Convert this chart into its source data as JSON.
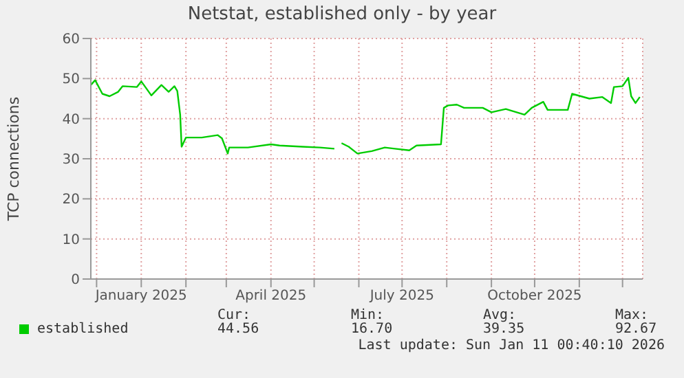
{
  "chart_data": {
    "type": "line",
    "title": "Netstat, established only - by year",
    "ylabel": "TCP connections",
    "x": [
      "2024-11-27",
      "2024-11-30",
      "2024-12-05",
      "2024-12-10",
      "2024-12-16",
      "2024-12-19",
      "2024-12-29",
      "2025-01-01",
      "2025-01-08",
      "2025-01-15",
      "2025-01-20",
      "2025-01-24",
      "2025-01-26",
      "2025-01-28",
      "2025-01-29",
      "2025-02-01",
      "2025-02-12",
      "2025-02-23",
      "2025-02-26",
      "2025-03-02",
      "2025-03-03",
      "2025-03-16",
      "2025-04-01",
      "2025-04-07",
      "2025-04-23",
      "2025-05-05",
      "2025-05-15",
      "2025-05-17",
      "2025-05-20",
      "2025-05-25",
      "2025-05-31",
      "2025-06-10",
      "2025-06-19",
      "2025-06-26",
      "2025-07-06",
      "2025-07-11",
      "2025-07-28",
      "2025-07-30",
      "2025-08-02",
      "2025-08-08",
      "2025-08-13",
      "2025-08-26",
      "2025-09-01",
      "2025-09-11",
      "2025-09-24",
      "2025-09-29",
      "2025-10-07",
      "2025-10-10",
      "2025-10-24",
      "2025-10-27",
      "2025-11-08",
      "2025-11-17",
      "2025-11-23",
      "2025-11-25",
      "2025-12-01",
      "2025-12-05",
      "2025-12-07",
      "2025-12-10",
      "2025-12-13"
    ],
    "series": [
      {
        "name": "established",
        "color": "#00cc00",
        "values": [
          48.4,
          49.6,
          46.2,
          45.6,
          46.7,
          48.1,
          47.9,
          49.3,
          45.8,
          48.4,
          46.7,
          48.1,
          46.9,
          41,
          33,
          35.3,
          35.3,
          35.9,
          35.1,
          31.3,
          32.8,
          32.8,
          33.6,
          33.3,
          33,
          32.8,
          32.5,
          null,
          33.9,
          33,
          31.3,
          31.9,
          32.8,
          32.5,
          32.1,
          33.3,
          33.6,
          42.7,
          43.3,
          43.5,
          42.7,
          42.7,
          41.6,
          42.4,
          41,
          42.7,
          44.2,
          42.2,
          42.2,
          46.2,
          45,
          45.4,
          43.9,
          47.9,
          48.1,
          50.2,
          45.6,
          43.9,
          45.4
        ]
      }
    ],
    "xlim": [
      "2024-11-27",
      "2025-12-15"
    ],
    "xticks": [
      {
        "value": "2024-12-01",
        "label": null
      },
      {
        "value": "2025-01-01",
        "label": "January 2025"
      },
      {
        "value": "2025-02-01",
        "label": null
      },
      {
        "value": "2025-03-01",
        "label": null
      },
      {
        "value": "2025-04-01",
        "label": "April 2025"
      },
      {
        "value": "2025-05-01",
        "label": null
      },
      {
        "value": "2025-06-01",
        "label": null
      },
      {
        "value": "2025-07-01",
        "label": "July 2025"
      },
      {
        "value": "2025-08-01",
        "label": null
      },
      {
        "value": "2025-09-01",
        "label": null
      },
      {
        "value": "2025-10-01",
        "label": "October 2025"
      },
      {
        "value": "2025-11-01",
        "label": null
      },
      {
        "value": "2025-12-01",
        "label": null
      }
    ],
    "ylim": [
      0,
      60
    ],
    "yticks": [
      0,
      10,
      20,
      30,
      40,
      50,
      60
    ],
    "grid": true,
    "legend": "bottom left",
    "marker": "none",
    "line_style": "solid",
    "annotations": [
      "Cur:",
      "Min:",
      "Avg:",
      "Max:",
      "44.56",
      "16.70",
      "39.35",
      "92.67",
      "Last update: Sun Jan 11 00:40:10 2026"
    ]
  }
}
